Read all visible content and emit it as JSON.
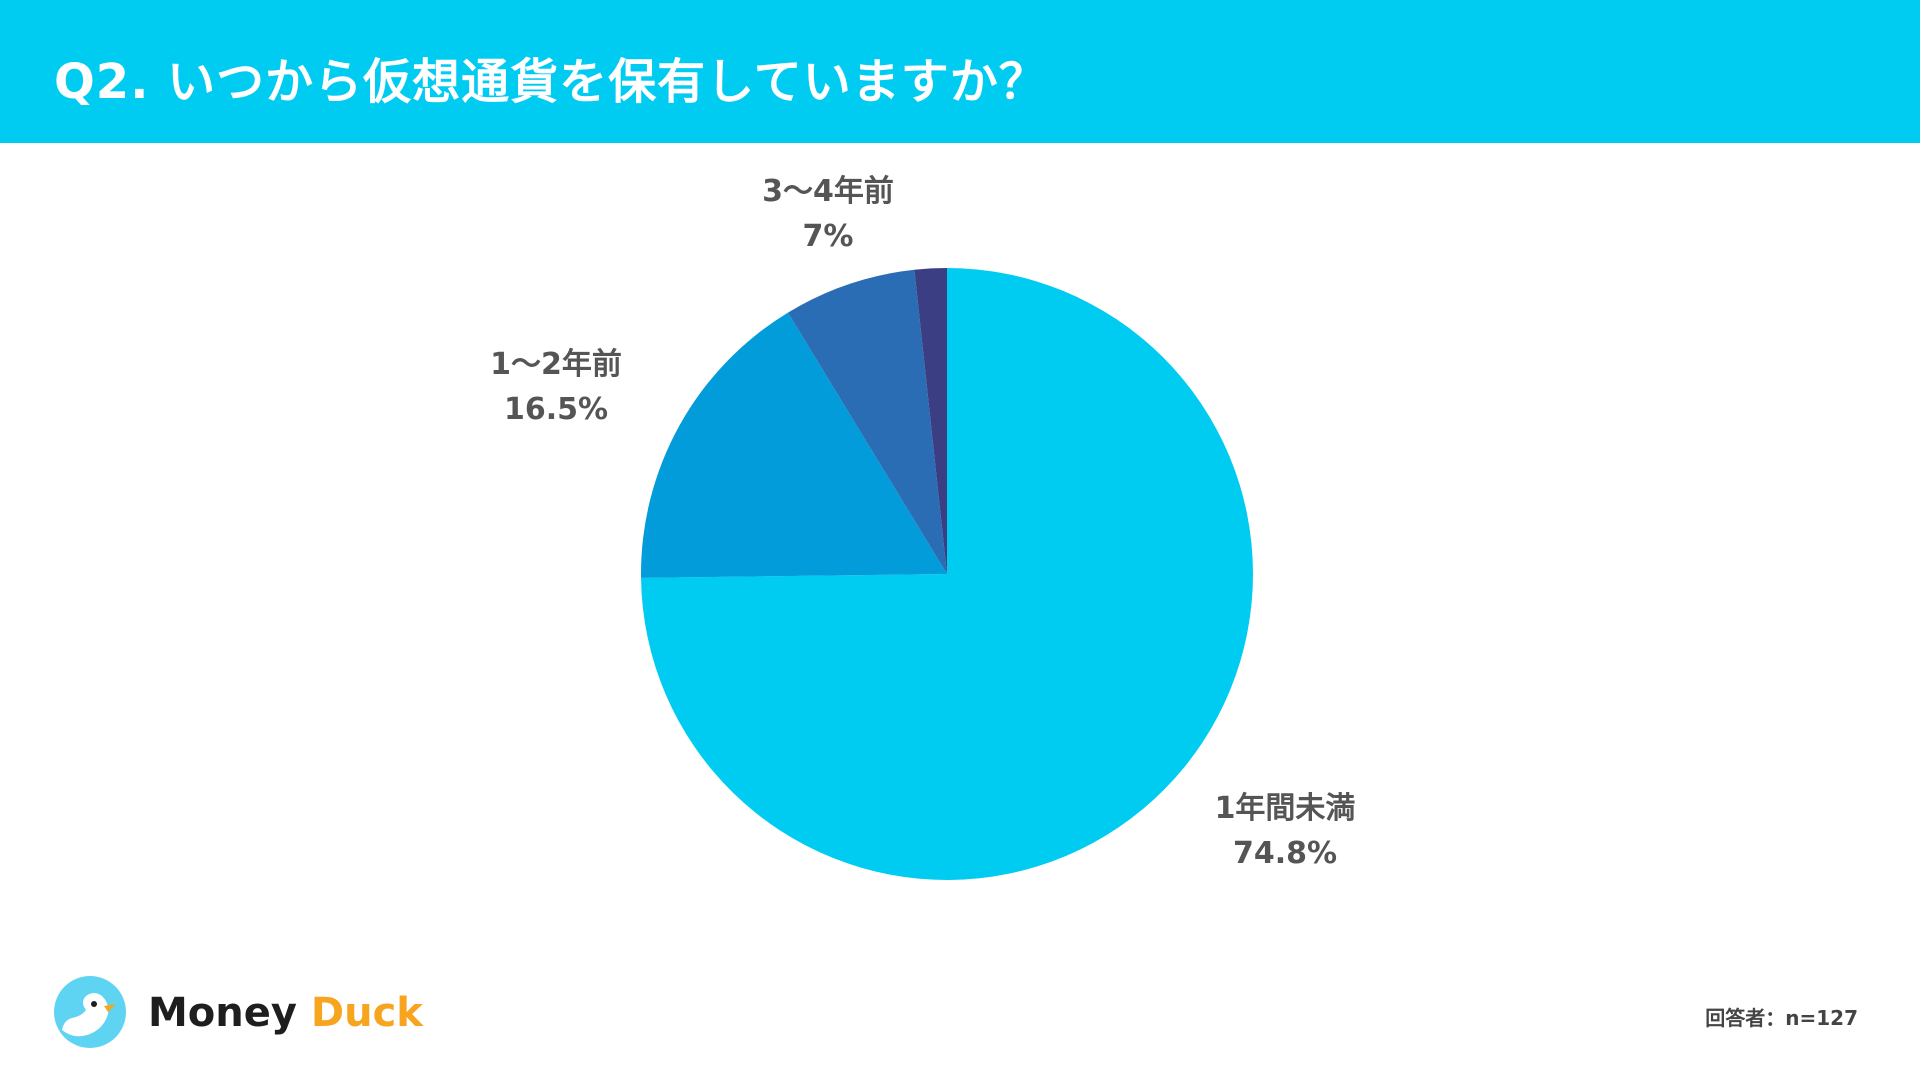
{
  "header": {
    "title": "Q2. いつから仮想通貨を保有していますか？",
    "color": "#00cbf1"
  },
  "chart_data": {
    "type": "pie",
    "title": "Q2. いつから仮想通貨を保有していますか？",
    "start": "12 o'clock, clockwise",
    "slices": [
      {
        "label": "1年間未満",
        "value": 74.8,
        "value_label": "74.8%",
        "color": "#00cbf1"
      },
      {
        "label": "1～2年前",
        "value": 16.5,
        "value_label": "16.5%",
        "color": "#029cda"
      },
      {
        "label": "3～4年前",
        "value": 7,
        "value_label": "7%",
        "color": "#2a6db4"
      },
      {
        "label": "",
        "value": 1.7,
        "value_label": "",
        "color": "#3b3e82"
      }
    ]
  },
  "footer": {
    "logo": {
      "word1": "Money",
      "word2": "Duck",
      "icon": "duck-logo-icon"
    },
    "respondents": "回答者：n=127"
  }
}
